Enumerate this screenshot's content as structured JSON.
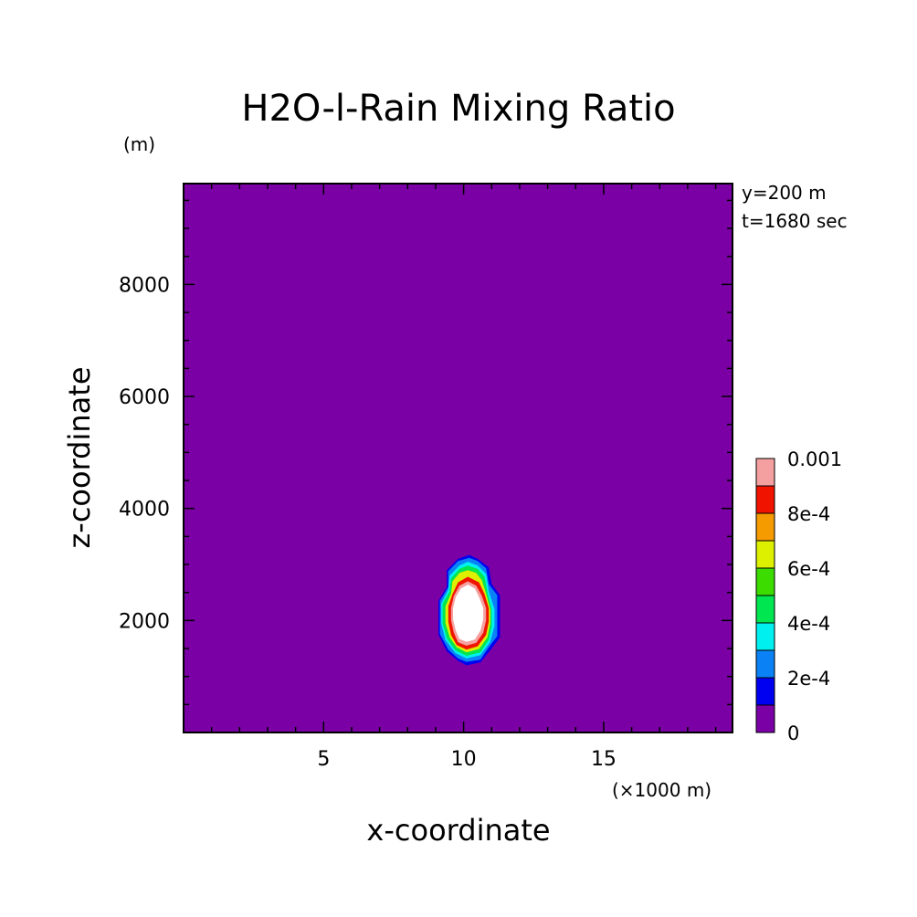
{
  "chart_data": {
    "type": "heatmap",
    "title": "H2O-l-Rain Mixing Ratio",
    "xlabel": "x-coordinate",
    "ylabel": "z-coordinate",
    "x_unit": "(×1000 m)",
    "y_unit": "(m)",
    "annotations": [
      "y=200 m",
      "t=1680 sec"
    ],
    "xlim": [
      0,
      19.6
    ],
    "ylim": [
      0,
      9800
    ],
    "x_ticks": [
      5,
      10,
      15
    ],
    "y_ticks": [
      2000,
      4000,
      6000,
      8000
    ],
    "x_tick_labels": [
      "5",
      "10",
      "15"
    ],
    "y_tick_labels": [
      "2000",
      "4000",
      "6000",
      "8000"
    ],
    "colorbar": {
      "levels": [
        0,
        0.0001,
        0.0002,
        0.0003,
        0.0004,
        0.0005,
        0.0006,
        0.0007,
        0.0008,
        0.0009,
        0.001
      ],
      "colors": [
        "#7a00a6",
        "#0000f0",
        "#0a82f5",
        "#00f0f0",
        "#00e650",
        "#3cdc00",
        "#dcf000",
        "#f59b00",
        "#f01400",
        "#f5a0a0"
      ],
      "tick_labels": [
        "0",
        "2e-4",
        "4e-4",
        "6e-4",
        "8e-4",
        "0.001"
      ]
    },
    "field": {
      "background_level": 0,
      "max_color": "#ffffff",
      "contours": [
        {
          "level": 0.0001,
          "points": [
            [
              10.1,
              1200
            ],
            [
              10.6,
              1250
            ],
            [
              11.0,
              1500
            ],
            [
              11.3,
              1700
            ],
            [
              11.3,
              2150
            ],
            [
              11.3,
              2450
            ],
            [
              11.0,
              2650
            ],
            [
              10.9,
              2950
            ],
            [
              10.5,
              3100
            ],
            [
              10.2,
              3170
            ],
            [
              9.8,
              3100
            ],
            [
              9.4,
              2900
            ],
            [
              9.4,
              2600
            ],
            [
              9.1,
              2350
            ],
            [
              9.1,
              2050
            ],
            [
              9.1,
              1750
            ],
            [
              9.4,
              1450
            ],
            [
              9.8,
              1280
            ]
          ]
        },
        {
          "level": 0.0002,
          "points": [
            [
              10.1,
              1260
            ],
            [
              10.6,
              1300
            ],
            [
              10.9,
              1520
            ],
            [
              11.2,
              1720
            ],
            [
              11.2,
              2150
            ],
            [
              11.2,
              2450
            ],
            [
              10.9,
              2650
            ],
            [
              10.8,
              2930
            ],
            [
              10.5,
              3060
            ],
            [
              10.2,
              3120
            ],
            [
              9.8,
              3060
            ],
            [
              9.45,
              2880
            ],
            [
              9.45,
              2600
            ],
            [
              9.15,
              2350
            ],
            [
              9.15,
              2050
            ],
            [
              9.15,
              1760
            ],
            [
              9.45,
              1480
            ],
            [
              9.8,
              1320
            ]
          ]
        },
        {
          "level": 0.0003,
          "points": [
            [
              10.1,
              1320
            ],
            [
              10.6,
              1380
            ],
            [
              10.95,
              1620
            ],
            [
              11.1,
              1900
            ],
            [
              11.1,
              2200
            ],
            [
              10.9,
              2520
            ],
            [
              10.8,
              2830
            ],
            [
              10.5,
              2980
            ],
            [
              10.15,
              3050
            ],
            [
              9.85,
              2980
            ],
            [
              9.5,
              2800
            ],
            [
              9.45,
              2550
            ],
            [
              9.2,
              2300
            ],
            [
              9.2,
              1950
            ],
            [
              9.35,
              1650
            ],
            [
              9.7,
              1420
            ]
          ]
        },
        {
          "level": 0.0004,
          "points": [
            [
              10.1,
              1370
            ],
            [
              10.6,
              1430
            ],
            [
              10.9,
              1650
            ],
            [
              11.0,
              1900
            ],
            [
              11.0,
              2200
            ],
            [
              10.85,
              2500
            ],
            [
              10.75,
              2780
            ],
            [
              10.5,
              2920
            ],
            [
              10.15,
              2980
            ],
            [
              9.85,
              2920
            ],
            [
              9.55,
              2750
            ],
            [
              9.5,
              2520
            ],
            [
              9.25,
              2300
            ],
            [
              9.25,
              1950
            ],
            [
              9.4,
              1680
            ],
            [
              9.7,
              1470
            ]
          ]
        },
        {
          "level": 0.0006,
          "points": [
            [
              10.1,
              1430
            ],
            [
              10.55,
              1490
            ],
            [
              10.85,
              1700
            ],
            [
              10.95,
              1950
            ],
            [
              10.95,
              2200
            ],
            [
              10.8,
              2480
            ],
            [
              10.65,
              2720
            ],
            [
              10.45,
              2850
            ],
            [
              10.15,
              2900
            ],
            [
              9.85,
              2850
            ],
            [
              9.6,
              2700
            ],
            [
              9.55,
              2480
            ],
            [
              9.35,
              2250
            ],
            [
              9.35,
              1950
            ],
            [
              9.5,
              1700
            ],
            [
              9.75,
              1520
            ]
          ]
        },
        {
          "level": 0.0008,
          "points": [
            [
              10.1,
              1480
            ],
            [
              10.5,
              1540
            ],
            [
              10.8,
              1740
            ],
            [
              10.9,
              1980
            ],
            [
              10.9,
              2220
            ],
            [
              10.75,
              2470
            ],
            [
              10.55,
              2680
            ],
            [
              10.15,
              2780
            ],
            [
              9.8,
              2680
            ],
            [
              9.6,
              2470
            ],
            [
              9.45,
              2250
            ],
            [
              9.45,
              1980
            ],
            [
              9.55,
              1740
            ],
            [
              9.75,
              1560
            ]
          ]
        },
        {
          "level": 0.0009,
          "points": [
            [
              10.1,
              1550
            ],
            [
              10.45,
              1600
            ],
            [
              10.7,
              1780
            ],
            [
              10.8,
              2000
            ],
            [
              10.8,
              2220
            ],
            [
              10.65,
              2440
            ],
            [
              10.45,
              2620
            ],
            [
              10.15,
              2700
            ],
            [
              9.85,
              2620
            ],
            [
              9.65,
              2440
            ],
            [
              9.55,
              2220
            ],
            [
              9.55,
              2000
            ],
            [
              9.65,
              1780
            ],
            [
              9.8,
              1610
            ]
          ]
        },
        {
          "level": 0.001,
          "points": [
            [
              10.1,
              1620
            ],
            [
              10.4,
              1660
            ],
            [
              10.6,
              1820
            ],
            [
              10.7,
              2020
            ],
            [
              10.7,
              2220
            ],
            [
              10.55,
              2420
            ],
            [
              10.4,
              2570
            ],
            [
              10.15,
              2640
            ],
            [
              9.9,
              2570
            ],
            [
              9.72,
              2420
            ],
            [
              9.62,
              2220
            ],
            [
              9.62,
              2020
            ],
            [
              9.72,
              1820
            ],
            [
              9.85,
              1670
            ]
          ]
        }
      ]
    }
  }
}
